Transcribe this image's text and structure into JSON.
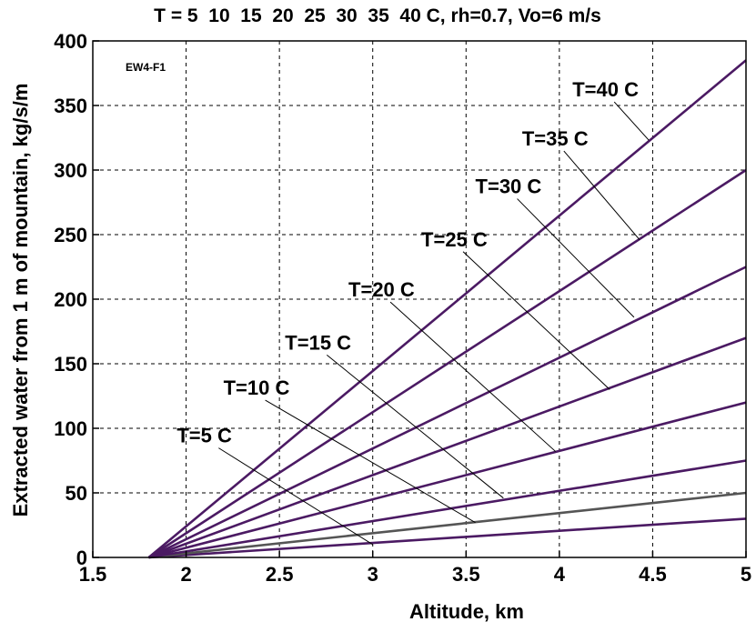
{
  "chart_data": {
    "type": "line",
    "title": "T = 5  10  15  20  25  30  35  40 C, rh=0.7, Vo=6 m/s",
    "xlabel": "Altitude, km",
    "ylabel": "Extracted water from 1 m of mountain, kg/s/m",
    "tag": "EW4-F1",
    "xlim": [
      1.5,
      5
    ],
    "ylim": [
      0,
      400
    ],
    "grid": true,
    "x_ticks": [
      "1.5",
      "2",
      "2.5",
      "3",
      "3.5",
      "4",
      "4.5",
      "5"
    ],
    "y_ticks": [
      "0",
      "50",
      "100",
      "150",
      "200",
      "250",
      "300",
      "350",
      "400"
    ],
    "x_tick_values": [
      1.5,
      2,
      2.5,
      3,
      3.5,
      4,
      4.5,
      5
    ],
    "y_tick_values": [
      0,
      50,
      100,
      150,
      200,
      250,
      300,
      350,
      400
    ],
    "series_color": "#4b1a63",
    "gray_series_color": "#555555",
    "series": [
      {
        "label": "T=5 C",
        "x": [
          1.8,
          5
        ],
        "y": [
          0,
          30
        ],
        "label_at": [
          1.95,
          89
        ],
        "pointer_to": [
          3.0,
          10
        ]
      },
      {
        "label": "T=10 C",
        "x": [
          1.8,
          5
        ],
        "y": [
          0,
          50
        ],
        "label_at": [
          2.2,
          126
        ],
        "pointer_to": [
          3.55,
          27
        ],
        "gray": true
      },
      {
        "label": "T=15 C",
        "x": [
          1.8,
          5
        ],
        "y": [
          0,
          75
        ],
        "label_at": [
          2.53,
          161
        ],
        "pointer_to": [
          3.7,
          46
        ]
      },
      {
        "label": "T=20 C",
        "x": [
          1.8,
          5
        ],
        "y": [
          0,
          120
        ],
        "label_at": [
          2.87,
          202
        ],
        "pointer_to": [
          3.98,
          82
        ]
      },
      {
        "label": "T=25 C",
        "x": [
          1.8,
          5
        ],
        "y": [
          0,
          170
        ],
        "label_at": [
          3.26,
          241
        ],
        "pointer_to": [
          4.27,
          130
        ]
      },
      {
        "label": "T=30 C",
        "x": [
          1.8,
          5
        ],
        "y": [
          0,
          225
        ],
        "label_at": [
          3.55,
          282
        ],
        "pointer_to": [
          4.4,
          186
        ]
      },
      {
        "label": "T=35 C",
        "x": [
          1.8,
          5
        ],
        "y": [
          0,
          300
        ],
        "label_at": [
          3.8,
          319
        ],
        "pointer_to": [
          4.43,
          246
        ]
      },
      {
        "label": "T=40 C",
        "x": [
          1.8,
          5
        ],
        "y": [
          0,
          385
        ],
        "label_at": [
          4.07,
          357
        ],
        "pointer_to": [
          4.48,
          323
        ]
      }
    ]
  }
}
